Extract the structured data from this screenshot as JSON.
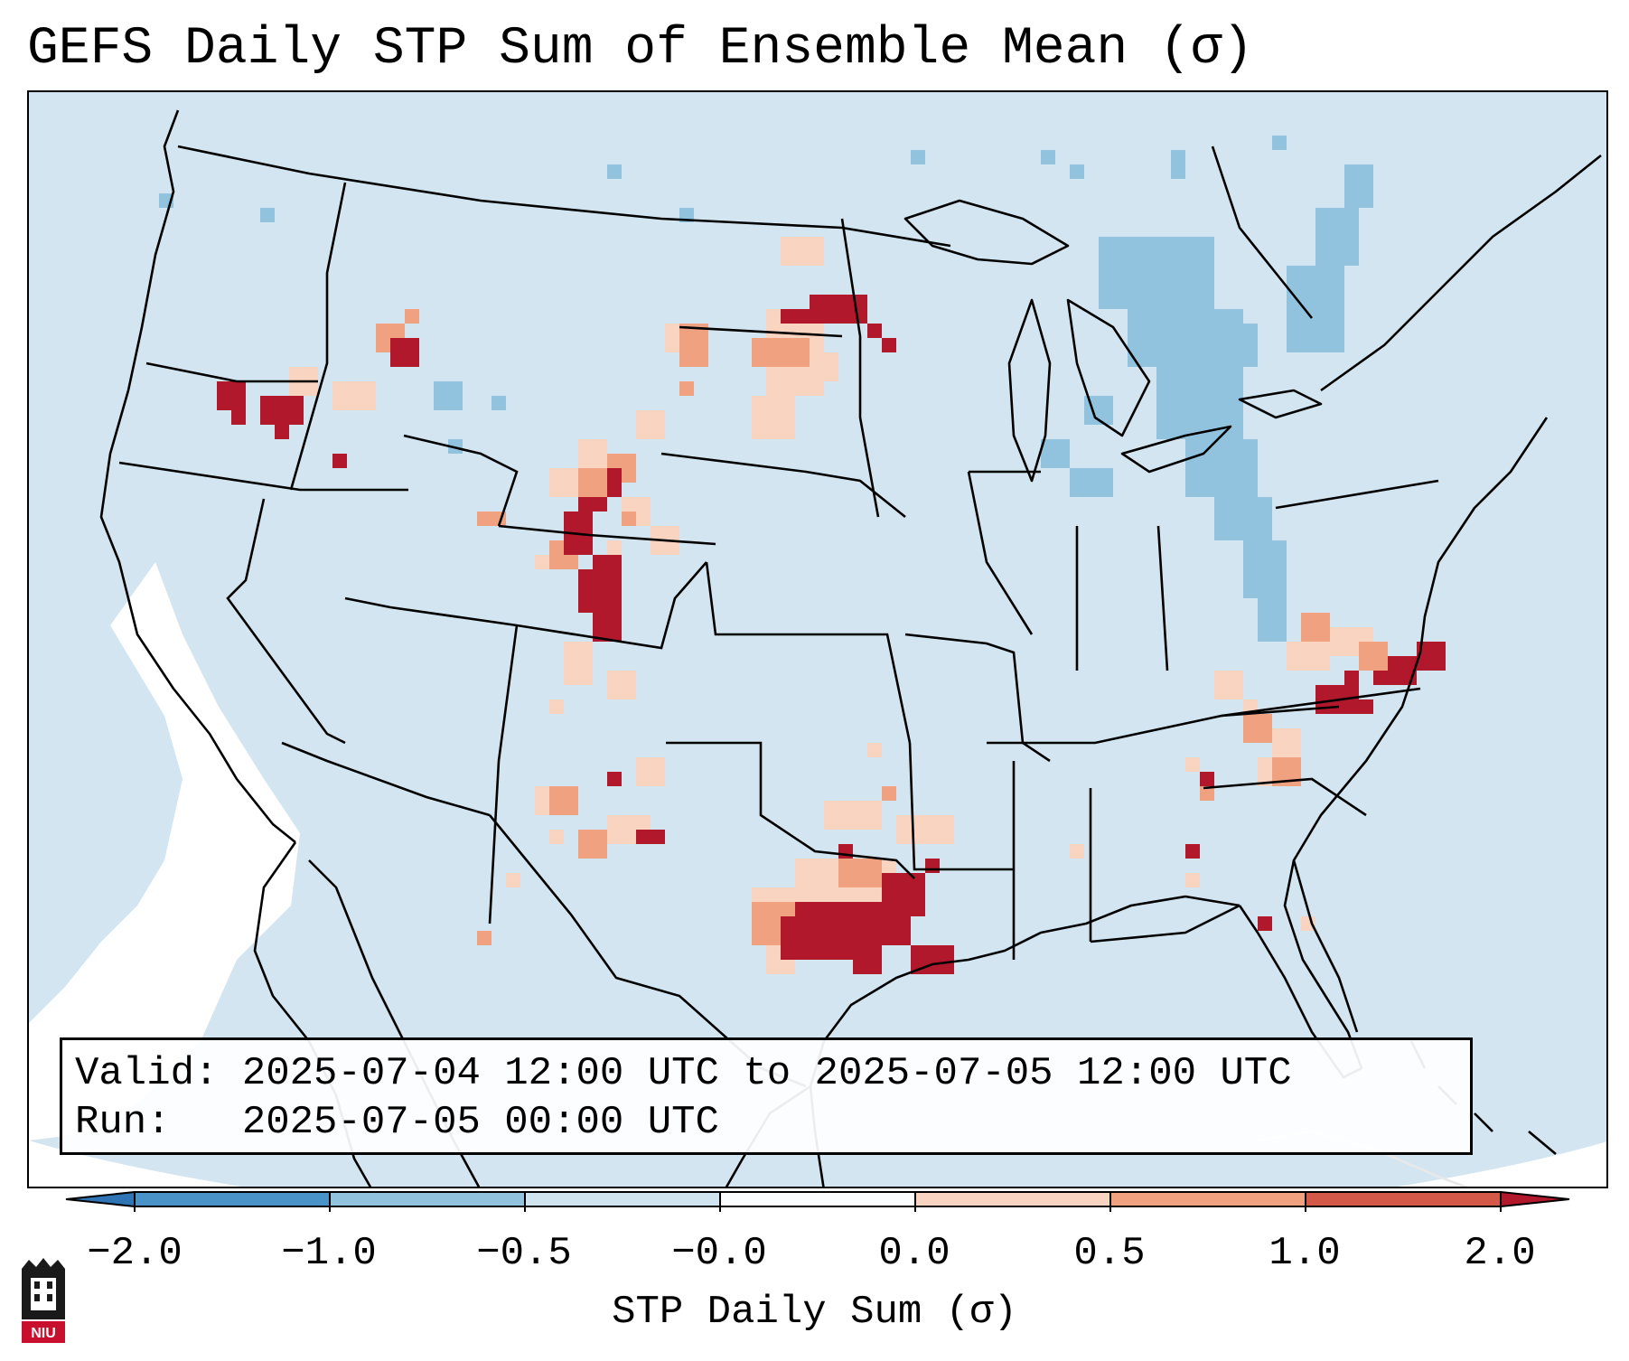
{
  "title": "GEFS Daily STP Sum of Ensemble Mean (σ)",
  "info": {
    "valid_line": "Valid: 2025-07-04 12:00 UTC to 2025-07-05 12:00 UTC",
    "run_line": "Run:   2025-07-05 00:00 UTC"
  },
  "colorbar": {
    "label": "STP Daily Sum (σ)",
    "ticks": [
      "−2.0",
      "−1.0",
      "−0.5",
      "−0.0",
      "0.0",
      "0.5",
      "1.0",
      "2.0"
    ],
    "colors": [
      "#2f75b5",
      "#4a93c8",
      "#91c3de",
      "#d0e4f0",
      "#fbfcfd",
      "#f9d4c1",
      "#f0a17f",
      "#d45949",
      "#b2182b"
    ]
  },
  "map": {
    "projection": "Lambert Conformal (CONUS)",
    "background_color": "#d2e5f0",
    "outside_color": "#ffffff",
    "line_color": "#000000",
    "category_colors": {
      "light": "#f9d4c1",
      "mid": "#f0a17f",
      "dark": "#b2182b",
      "neg": "#91c3de",
      "near_zero": "#ffffff"
    }
  },
  "logo": {
    "label": "NIU",
    "color": "#c8102e"
  }
}
